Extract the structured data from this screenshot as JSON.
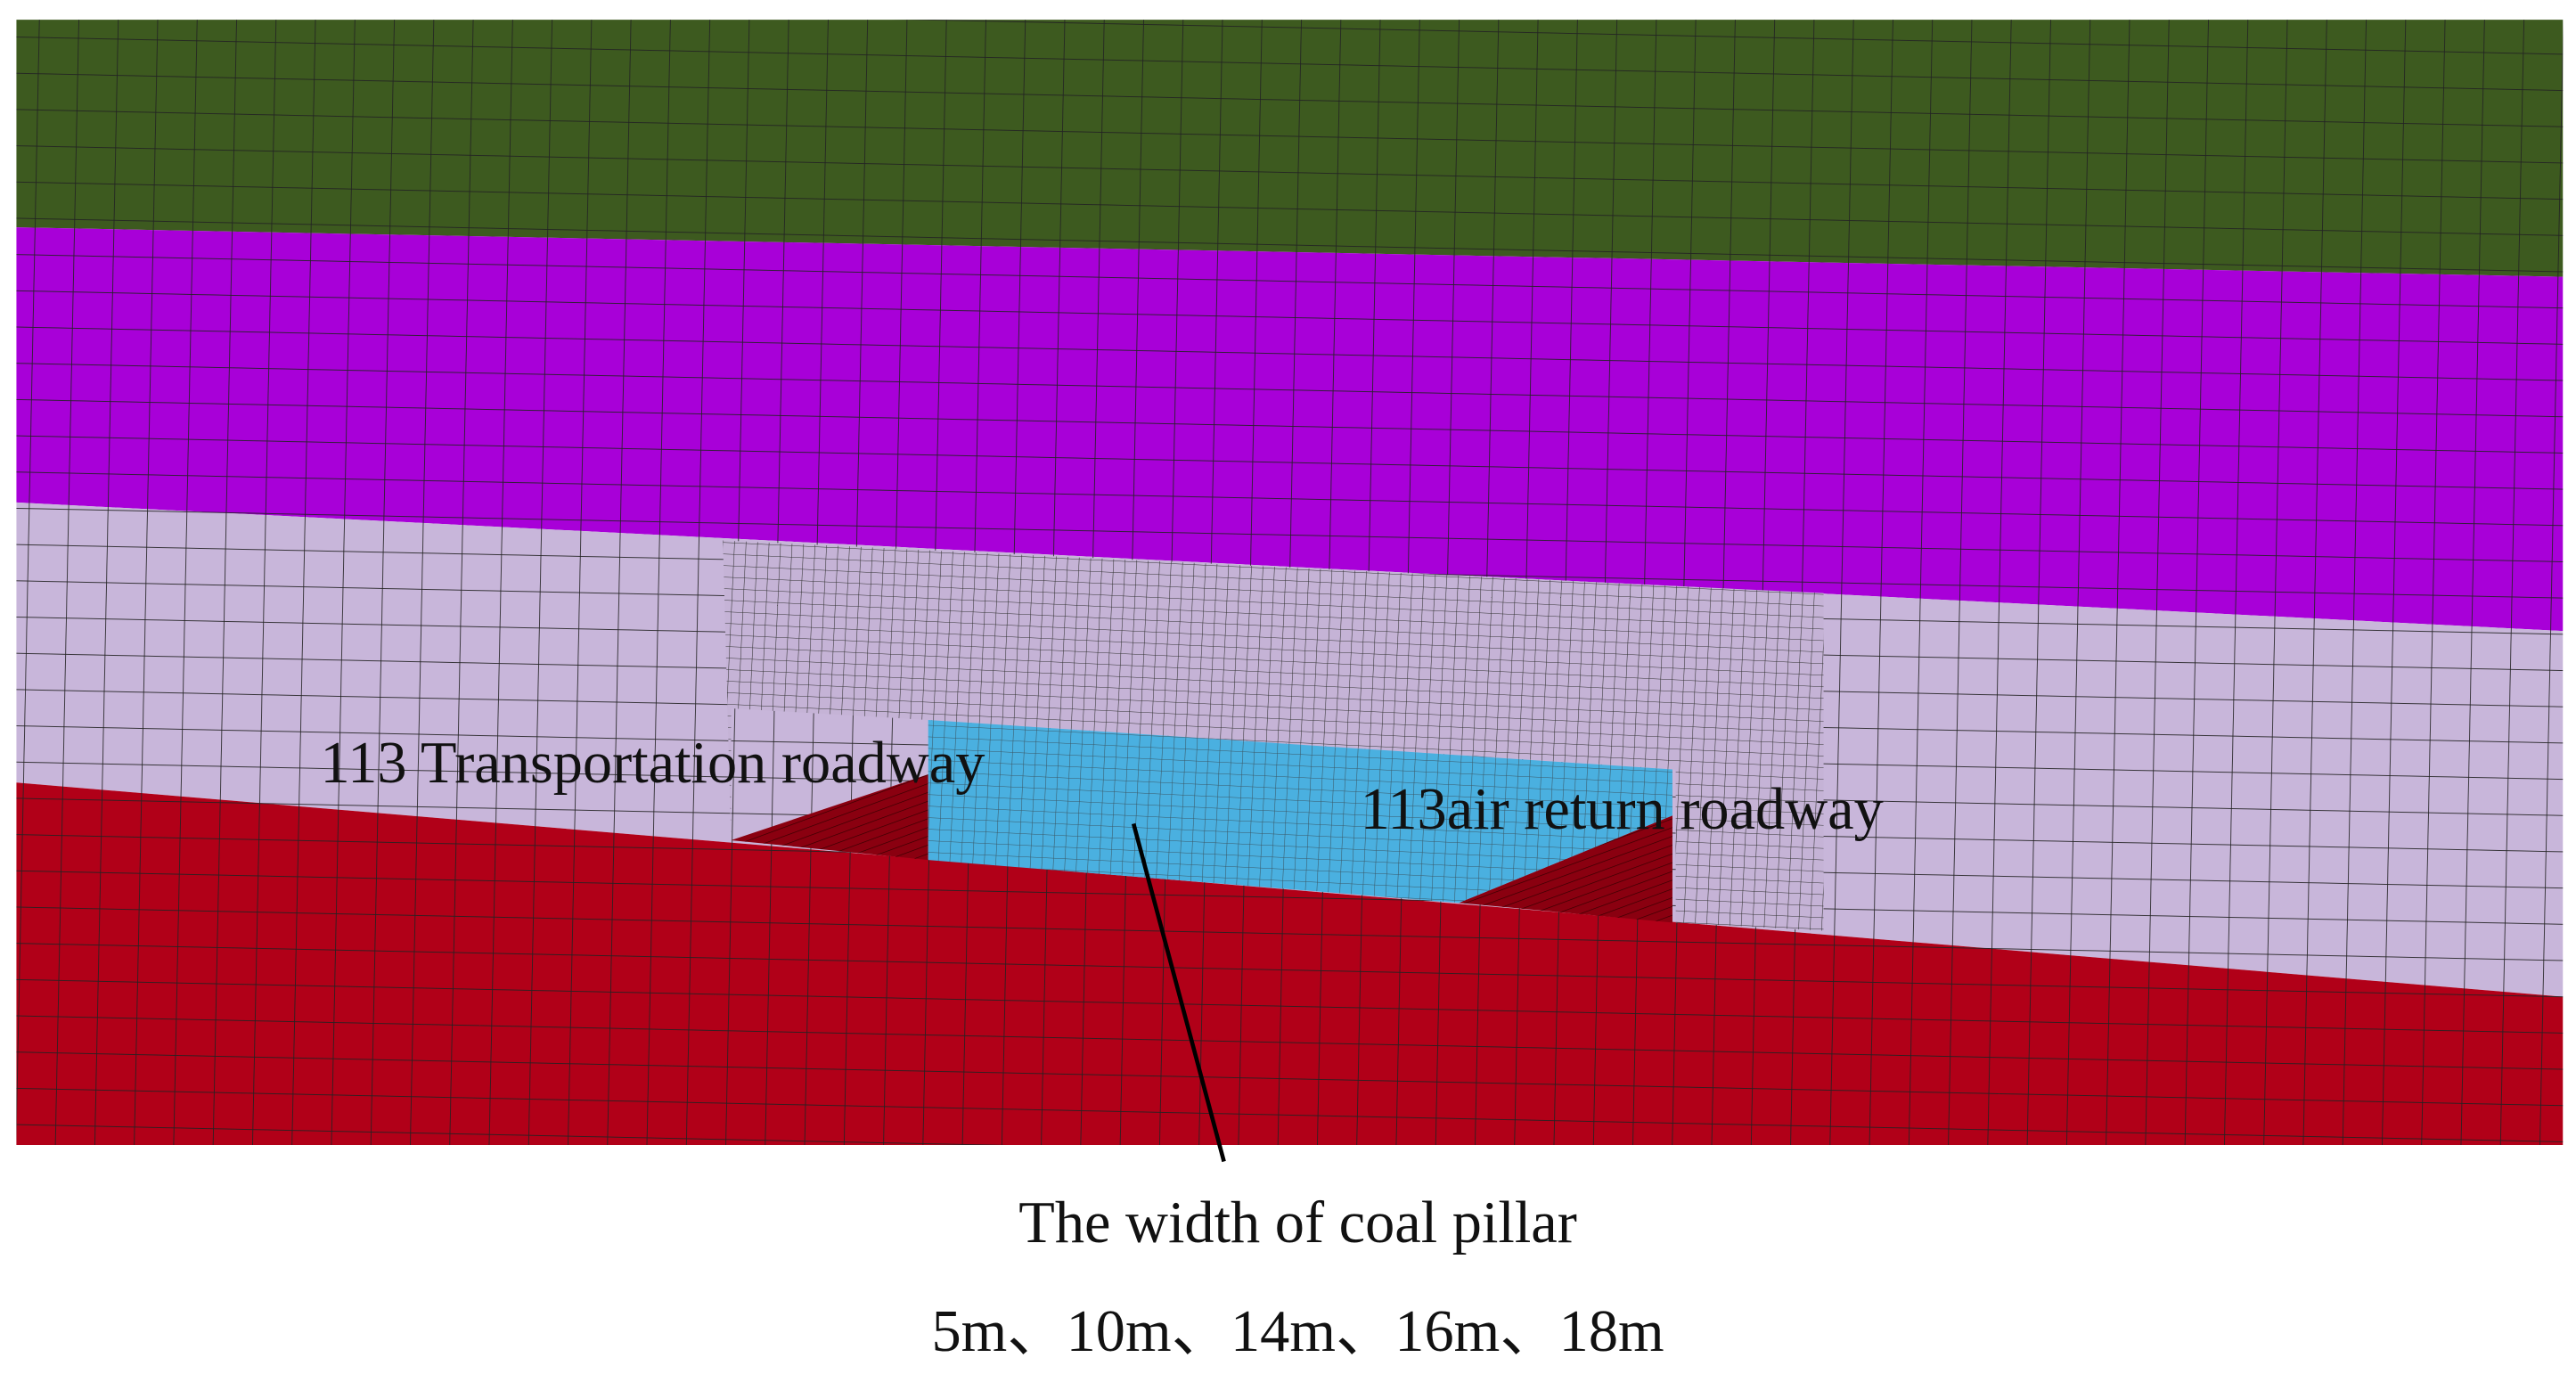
{
  "labels": {
    "left_roadway": "113 Transportation roadway",
    "right_roadway": "113air return roadway"
  },
  "caption": {
    "title": "The width of coal pillar",
    "widths": "5m、10m、14m、16m、18m"
  }
}
